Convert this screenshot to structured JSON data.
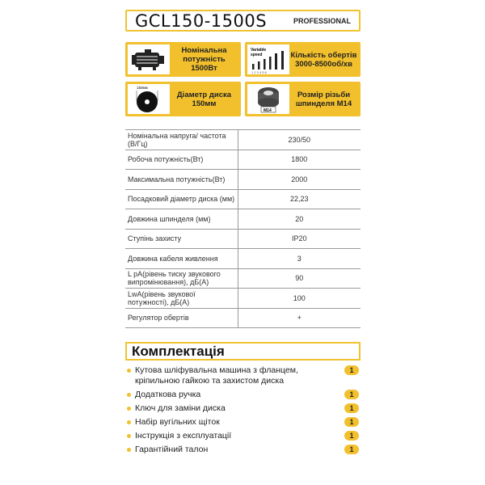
{
  "header": {
    "model": "GCL150-1500S",
    "badge": "PROFESSIONAL"
  },
  "features": [
    {
      "icon": "motor-icon",
      "text": "Номінальна потужність 1500Вт"
    },
    {
      "icon": "variable-speed-icon",
      "icon_label": "Variable speed",
      "icon_scale": [
        "1",
        "2",
        "3",
        "4",
        "5",
        "6"
      ],
      "text": "Кількість обертів 3000-8500об/хв"
    },
    {
      "icon": "disc-icon",
      "icon_label": "150мм",
      "text": "Діаметр диска 150мм"
    },
    {
      "icon": "spindle-thread-icon",
      "icon_label": "M14",
      "text": "Розмір різьби шпинделя M14"
    }
  ],
  "specs": [
    {
      "name": "Номінальна напруга/ частота (В/Гц)",
      "value": "230/50"
    },
    {
      "name": "Робоча потужність(Вт)",
      "value": "1800"
    },
    {
      "name": "Максимальна потужність(Вт)",
      "value": "2000"
    },
    {
      "name": "Посадковий діаметр диска (мм)",
      "value": "22,23"
    },
    {
      "name": "Довжина шпинделя (мм)",
      "value": "20"
    },
    {
      "name": "Ступінь захисту",
      "value": "IP20"
    },
    {
      "name": "Довжина кабеля живлення",
      "value": "3"
    },
    {
      "name": "L pA(рівень тиску звукового випромінювання), дБ(А)",
      "value": "90"
    },
    {
      "name": "LwA(рівень звукової потужності), дБ(А)",
      "value": "100"
    },
    {
      "name": "Регулятор обертів",
      "value": "+"
    }
  ],
  "kit": {
    "title": "Комплектація",
    "items": [
      {
        "name": "Кутова шліфувальна машина з фланцем, кріпильною гайкою та захистом диска",
        "qty": "1"
      },
      {
        "name": "Додаткова ручка",
        "qty": "1"
      },
      {
        "name": "Ключ для заміни диска",
        "qty": "1"
      },
      {
        "name": "Набір вугільних щіток",
        "qty": "1"
      },
      {
        "name": "Інструкція з експлуатації",
        "qty": "1"
      },
      {
        "name": "Гарантійний талон",
        "qty": "1"
      }
    ]
  },
  "colors": {
    "accent": "#f2c02c"
  }
}
